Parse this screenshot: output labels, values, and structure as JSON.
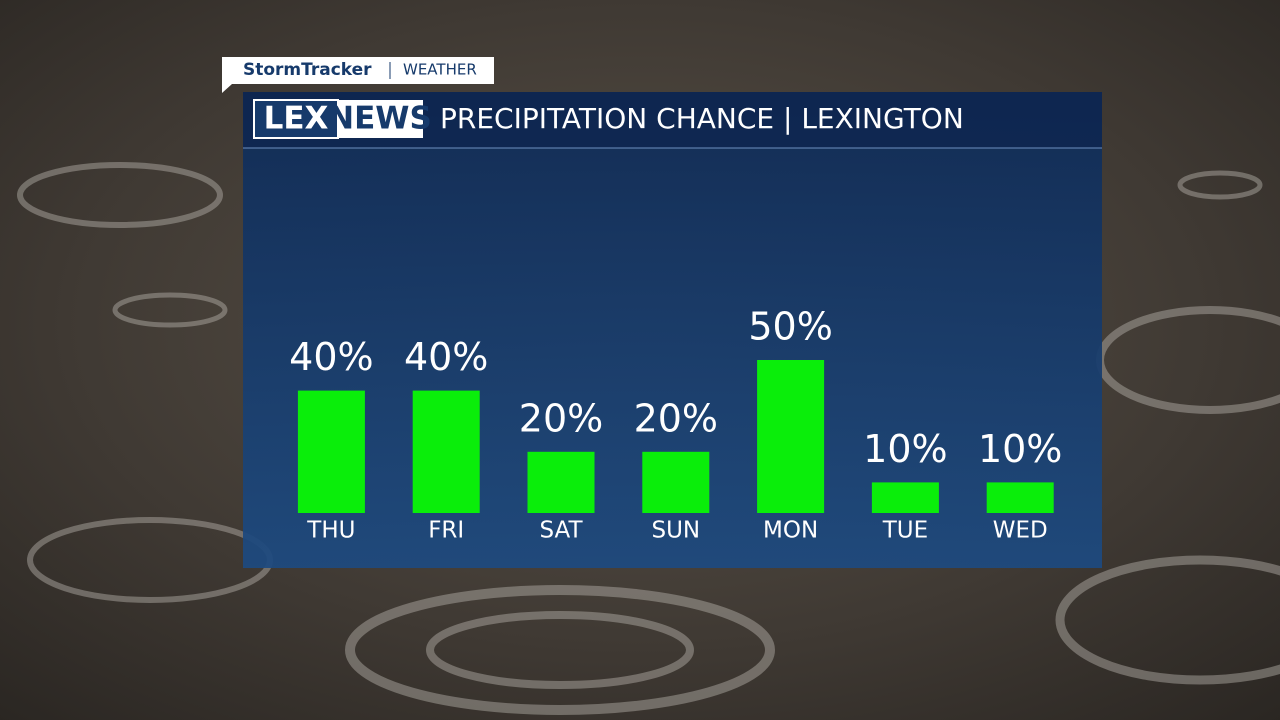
{
  "branding": {
    "show": "StormTracker",
    "section": "WEATHER",
    "logo_left": "LEX",
    "logo_right": "NEWS"
  },
  "chart_data": {
    "type": "bar",
    "title": "PRECIPITATION CHANCE | LEXINGTON",
    "categories": [
      "THU",
      "FRI",
      "SAT",
      "SUN",
      "MON",
      "TUE",
      "WED"
    ],
    "values": [
      40,
      40,
      20,
      20,
      50,
      10,
      10
    ],
    "value_labels": [
      "40%",
      "40%",
      "20%",
      "20%",
      "50%",
      "10%",
      "10%"
    ],
    "color": "#0aee0a"
  }
}
